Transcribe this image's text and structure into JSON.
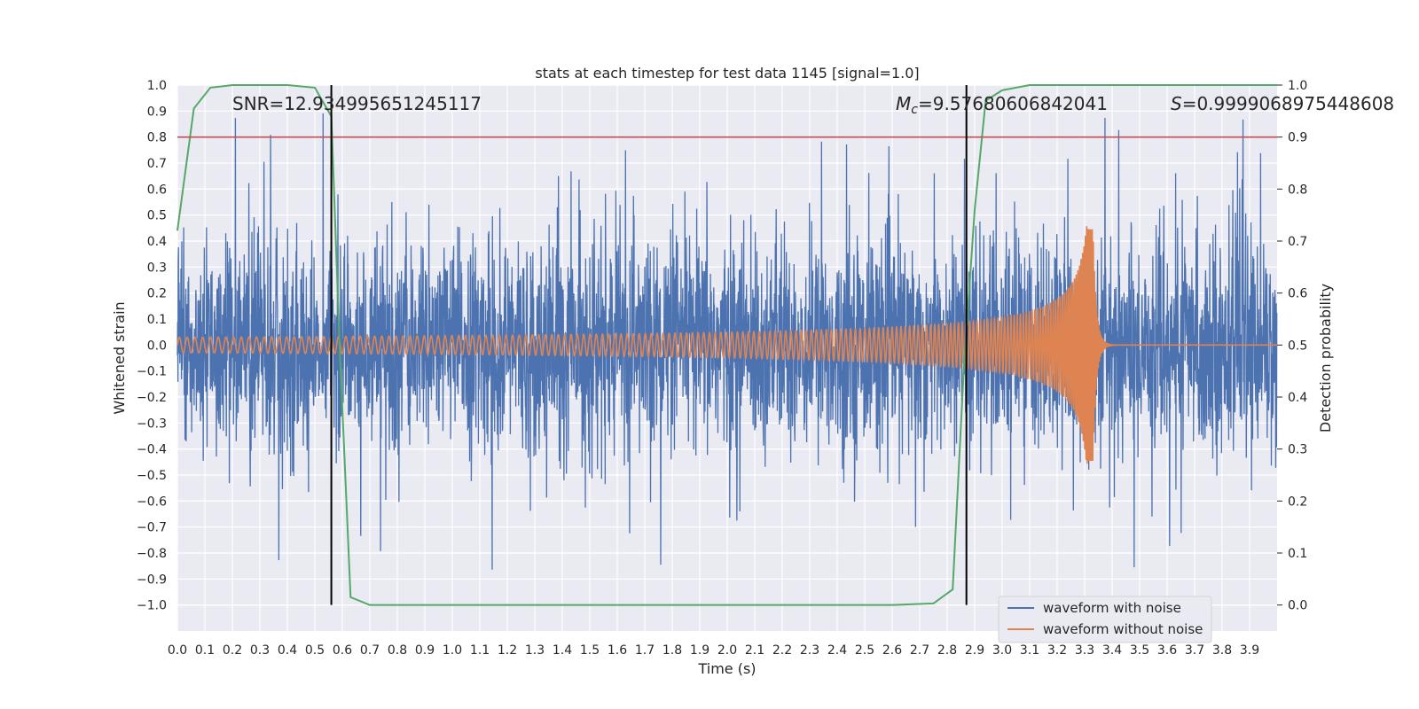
{
  "chart_data": {
    "type": "line",
    "title": "stats at each timestep for test data 1145 [signal=1.0]",
    "xlabel": "Time (s)",
    "ylabel": "Whitened strain",
    "y2label": "Detection probability",
    "xlim": [
      0.0,
      4.0
    ],
    "ylim": [
      -1.1,
      1.0
    ],
    "y2lim": [
      -0.05,
      1.0
    ],
    "x_ticks": [
      "0.0",
      "0.1",
      "0.2",
      "0.3",
      "0.4",
      "0.5",
      "0.6",
      "0.7",
      "0.8",
      "0.9",
      "1.0",
      "1.1",
      "1.2",
      "1.3",
      "1.4",
      "1.5",
      "1.6",
      "1.7",
      "1.8",
      "1.9",
      "2.0",
      "2.1",
      "2.2",
      "2.3",
      "2.4",
      "2.5",
      "2.6",
      "2.7",
      "2.8",
      "2.9",
      "3.0",
      "3.1",
      "3.2",
      "3.3",
      "3.4",
      "3.5",
      "3.6",
      "3.7",
      "3.8",
      "3.9"
    ],
    "y_ticks": [
      "1.0",
      "0.9",
      "0.8",
      "0.7",
      "0.6",
      "0.5",
      "0.4",
      "0.3",
      "0.2",
      "0.1",
      "0.0",
      "−0.1",
      "−0.2",
      "−0.3",
      "−0.4",
      "−0.5",
      "−0.6",
      "−0.7",
      "−0.8",
      "−0.9",
      "−1.0"
    ],
    "y2_ticks": [
      "1.0",
      "0.9",
      "0.8",
      "0.7",
      "0.6",
      "0.5",
      "0.4",
      "0.3",
      "0.2",
      "0.1",
      "0.0"
    ],
    "grid": true,
    "legend_position": "bottom-right",
    "series": [
      {
        "name": "waveform with noise",
        "color": "#4c72b0",
        "axis": "left",
        "kind": "noise",
        "std": 0.2,
        "peak_max": 0.92,
        "peak_min": -0.98,
        "samples": 4000,
        "seed": 1145
      },
      {
        "name": "waveform without noise",
        "color": "#dd8452",
        "axis": "left",
        "kind": "chirp",
        "t_merger": 3.33,
        "amp_start": 0.03,
        "amp_peak": 0.46,
        "freq_start_hz": 35,
        "freq_peak_hz": 250
      },
      {
        "name": "",
        "color": "#55a868",
        "axis": "right",
        "kind": "probability",
        "x": [
          0.0,
          0.06,
          0.12,
          0.2,
          0.3,
          0.4,
          0.5,
          0.56,
          0.59,
          0.63,
          0.7,
          0.8,
          1.0,
          1.5,
          2.0,
          2.4,
          2.6,
          2.75,
          2.82,
          2.86,
          2.9,
          2.94,
          3.0,
          3.1,
          3.3,
          3.6,
          3.9,
          4.0
        ],
        "y": [
          0.72,
          0.955,
          0.995,
          1.0,
          1.0,
          1.0,
          0.995,
          0.94,
          0.5,
          0.015,
          0.0,
          0.0,
          0.0,
          0.0,
          0.0,
          0.0,
          0.0,
          0.003,
          0.03,
          0.45,
          0.76,
          0.97,
          0.99,
          1.0,
          1.0,
          1.0,
          1.0,
          1.0
        ]
      }
    ],
    "threshold": {
      "axis": "right",
      "value": 0.9,
      "color": "#c44e52"
    },
    "vertical_lines": [
      0.56,
      2.87
    ],
    "annotations": {
      "snr": "SNR=12.934995651245117",
      "mc_symbol": "M",
      "mc_sub": "c",
      "mc_value": "=9.57680606842041",
      "s_symbol": "S",
      "s_value": "=0.9999068975448608"
    },
    "colors": {
      "background": "#eaeaf2",
      "grid": "#ffffff",
      "text": "#262626"
    }
  }
}
